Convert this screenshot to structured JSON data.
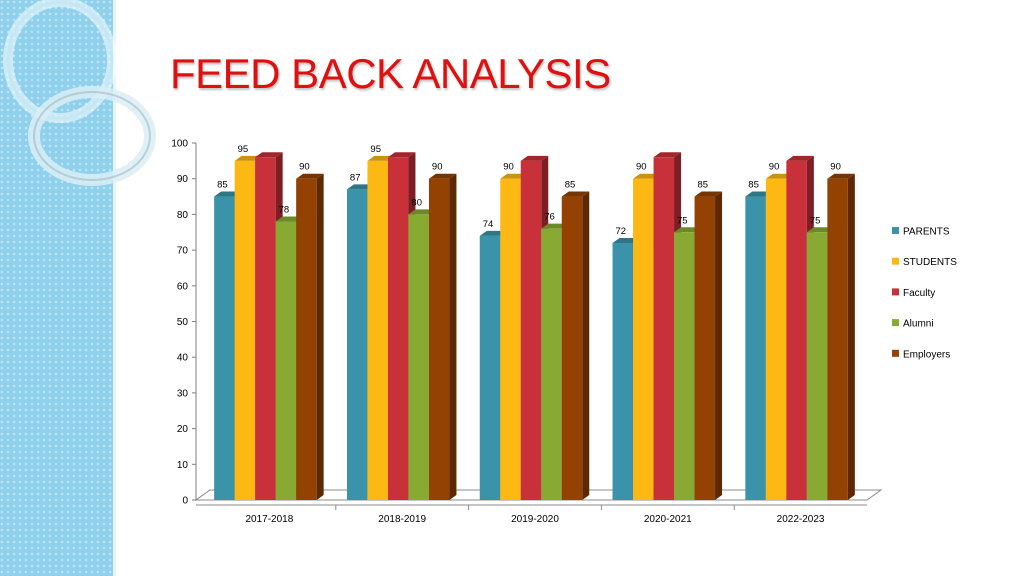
{
  "slide": {
    "title": "FEED BACK ANALYSIS"
  },
  "colors": {
    "side_panel": "#8fd0ec",
    "title": "#e01010"
  },
  "chart_data": {
    "type": "bar",
    "title": "",
    "xlabel": "",
    "ylabel": "",
    "categories": [
      "2017-2018",
      "2018-2019",
      "2019-2020",
      "2020-2021",
      "2022-2023"
    ],
    "ylim": [
      0,
      100
    ],
    "yticks": [
      0,
      10,
      20,
      30,
      40,
      50,
      60,
      70,
      80,
      90,
      100
    ],
    "grid": false,
    "legend_position": "right",
    "style": "3d-columns",
    "series": [
      {
        "name": "PARENTS",
        "color": "#3a93a8",
        "values": [
          85,
          87,
          74,
          72,
          85
        ]
      },
      {
        "name": "STUDENTS",
        "color": "#fdb813",
        "values": [
          95,
          95,
          90,
          90,
          90
        ]
      },
      {
        "name": "Faculty",
        "color": "#c8303a",
        "values": [
          96,
          96,
          95,
          96,
          95
        ]
      },
      {
        "name": "Alumni",
        "color": "#88aa33",
        "values": [
          78,
          80,
          76,
          75,
          75
        ]
      },
      {
        "name": "Employers",
        "color": "#944203",
        "values": [
          90,
          90,
          85,
          85,
          90
        ]
      }
    ],
    "data_labels": [
      [
        "85",
        "95",
        "",
        "78",
        "90"
      ],
      [
        "87",
        "95",
        "",
        "80",
        "90"
      ],
      [
        "74",
        "90",
        "",
        "76",
        "85"
      ],
      [
        "72",
        "90",
        "",
        "75",
        "85"
      ],
      [
        "85",
        "90",
        "",
        "75",
        "90"
      ]
    ]
  }
}
